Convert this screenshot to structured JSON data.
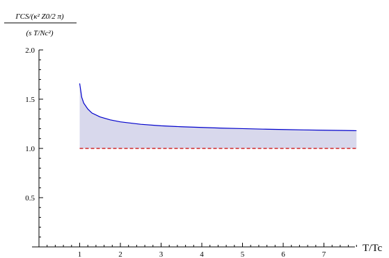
{
  "chart_data": {
    "type": "area",
    "ylabel_numerator": "ΓCS/(κ² Z0/2 π)",
    "ylabel_denominator": "(s T/Nc²)",
    "xlabel": "T/Tc",
    "xlim": [
      0,
      7.8
    ],
    "ylim": [
      0,
      2.0
    ],
    "x_ticks": [
      1,
      2,
      3,
      4,
      5,
      6,
      7
    ],
    "y_ticks": [
      0.5,
      1.0,
      1.5,
      2.0
    ],
    "y_tick_labels": [
      "0.5",
      "1.0",
      "1.5",
      "2.0"
    ],
    "x_tick_labels": [
      "1",
      "2",
      "3",
      "4",
      "5",
      "6",
      "7"
    ],
    "series": [
      {
        "x": [
          1.0,
          1.05,
          1.1,
          1.2,
          1.3,
          1.5,
          1.75,
          2.0,
          2.5,
          3.0,
          3.5,
          4.0,
          4.5,
          5.0,
          5.5,
          6.0,
          6.5,
          7.0,
          7.5,
          7.8
        ],
        "values": [
          1.66,
          1.52,
          1.46,
          1.4,
          1.36,
          1.32,
          1.29,
          1.27,
          1.245,
          1.23,
          1.22,
          1.213,
          1.206,
          1.201,
          1.196,
          1.192,
          1.188,
          1.185,
          1.182,
          1.18
        ],
        "color": "#0000cc"
      },
      {
        "x": [
          1.0,
          7.8
        ],
        "values": [
          1.0,
          1.0
        ],
        "color": "#cc0000",
        "dashed": true
      }
    ],
    "fill_color": "#d8d8ec",
    "grid": false
  }
}
